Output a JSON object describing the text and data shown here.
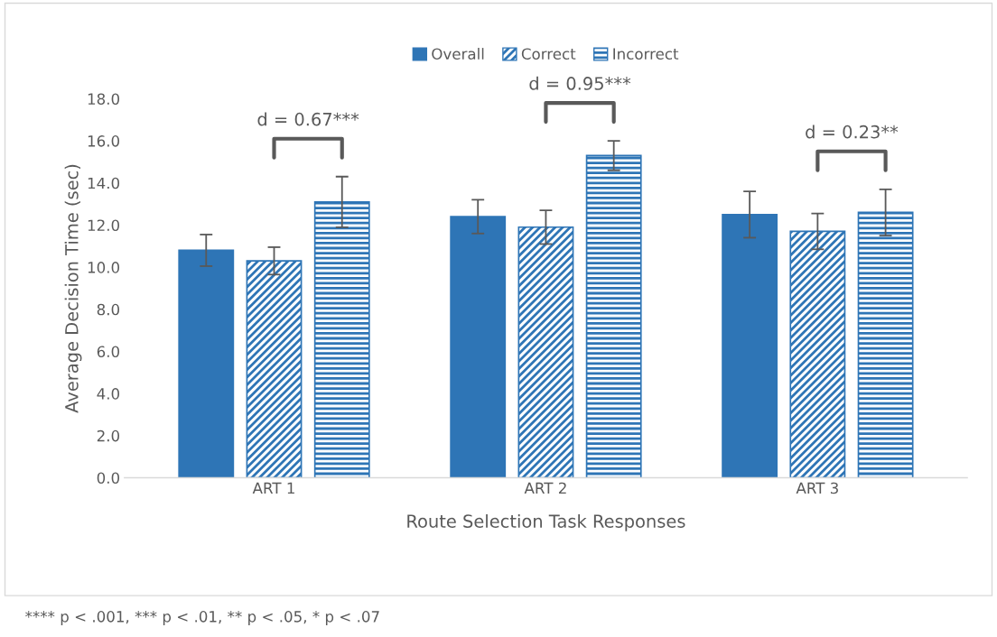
{
  "chart_data": {
    "type": "bar",
    "xlabel": "Route Selection Task Responses",
    "ylabel": "Average Decision Time (sec)",
    "categories": [
      "ART 1",
      "ART 2",
      "ART 3"
    ],
    "series": [
      {
        "name": "Overall",
        "color": "#2e75b6",
        "values": [
          10.8,
          12.4,
          12.5
        ],
        "errors": [
          0.75,
          0.8,
          1.1
        ]
      },
      {
        "name": "Correct",
        "color": "#2e75b6",
        "values": [
          10.3,
          11.9,
          11.7
        ],
        "errors": [
          0.65,
          0.8,
          0.85
        ]
      },
      {
        "name": "Incorrect",
        "color": "#2e75b6",
        "values": [
          13.1,
          15.3,
          12.6
        ],
        "errors": [
          1.2,
          0.7,
          1.1
        ]
      }
    ],
    "ylim": [
      0,
      18
    ],
    "yticks": [
      {
        "value": 0,
        "label": "0.0"
      },
      {
        "value": 2,
        "label": "2.0"
      },
      {
        "value": 4,
        "label": "4.0"
      },
      {
        "value": 6,
        "label": "6.0"
      },
      {
        "value": 8,
        "label": "8.0"
      },
      {
        "value": 10,
        "label": "10.0"
      },
      {
        "value": 12,
        "label": "12.0"
      },
      {
        "value": 14,
        "label": "14.0"
      },
      {
        "value": 16,
        "label": "16.0"
      },
      {
        "value": 18,
        "label": "18.0"
      }
    ],
    "grid": false,
    "legend": "top",
    "annotations": [
      "d = 0.67***",
      "d = 0.95***",
      "d = 0.23**",
      "**** p < .001, *** p < .01, ** p < .05, * p < .07"
    ]
  }
}
